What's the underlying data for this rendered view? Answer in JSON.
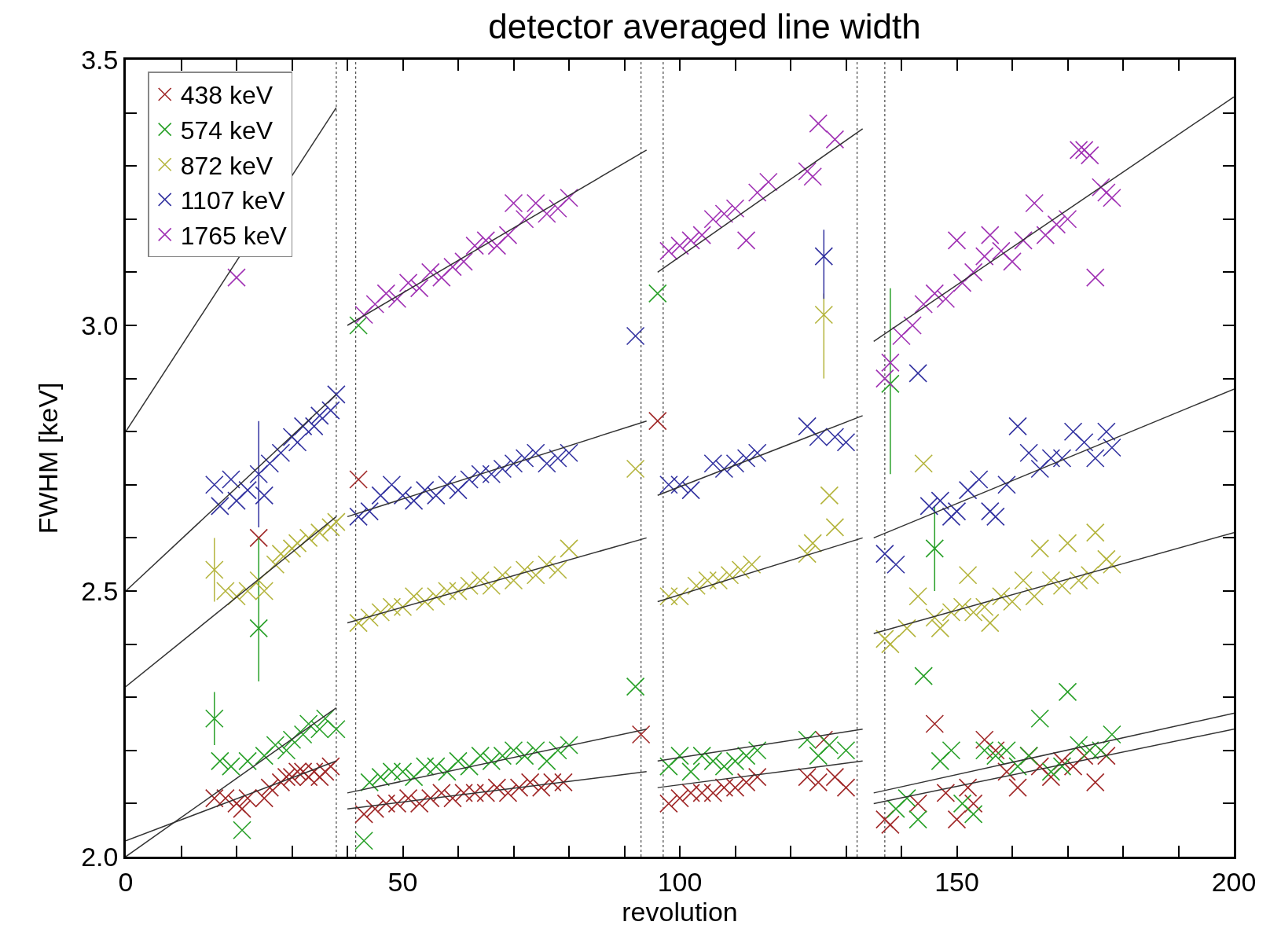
{
  "chart_data": {
    "type": "scatter",
    "title": "detector averaged line width",
    "xlabel": "revolution",
    "ylabel": "FWHM [keV]",
    "xlim": [
      0,
      200
    ],
    "ylim": [
      2.0,
      3.5
    ],
    "xticks": [
      0,
      {
        "value": 10,
        "label": null
      },
      {
        "value": 20,
        "label": null
      },
      {
        "value": 30,
        "label": null
      },
      {
        "value": 40,
        "label": null
      },
      50,
      {
        "value": 60,
        "label": null
      },
      {
        "value": 70,
        "label": null
      },
      {
        "value": 80,
        "label": null
      },
      {
        "value": 90,
        "label": null
      },
      100,
      {
        "value": 110,
        "label": null
      },
      {
        "value": 120,
        "label": null
      },
      {
        "value": 130,
        "label": null
      },
      {
        "value": 140,
        "label": null
      },
      150,
      {
        "value": 160,
        "label": null
      },
      {
        "value": 170,
        "label": null
      },
      {
        "value": 180,
        "label": null
      },
      {
        "value": 190,
        "label": null
      },
      200
    ],
    "yticks": [
      {
        "value": 2.0,
        "label": "2.0"
      },
      {
        "value": 2.1,
        "label": null
      },
      {
        "value": 2.2,
        "label": null
      },
      {
        "value": 2.3,
        "label": null
      },
      {
        "value": 2.4,
        "label": null
      },
      {
        "value": 2.5,
        "label": "2.5"
      },
      {
        "value": 2.6,
        "label": null
      },
      {
        "value": 2.7,
        "label": null
      },
      {
        "value": 2.8,
        "label": null
      },
      {
        "value": 2.9,
        "label": null
      },
      {
        "value": 3.0,
        "label": "3.0"
      },
      {
        "value": 3.1,
        "label": null
      },
      {
        "value": 3.2,
        "label": null
      },
      {
        "value": 3.3,
        "label": null
      },
      {
        "value": 3.4,
        "label": null
      },
      {
        "value": 3.5,
        "label": "3.5"
      }
    ],
    "grid": false,
    "legend": "top left",
    "ref_lines": [
      {
        "axis": "x",
        "value": 38,
        "color": "#555555",
        "line_style": "dotted"
      },
      {
        "axis": "x",
        "value": 41.5,
        "color": "#555555",
        "line_style": "dotted"
      },
      {
        "axis": "x",
        "value": 93,
        "color": "#555555",
        "line_style": "dotted"
      },
      {
        "axis": "x",
        "value": 97,
        "color": "#555555",
        "line_style": "dotted"
      },
      {
        "axis": "x",
        "value": 132,
        "color": "#555555",
        "line_style": "dotted"
      },
      {
        "axis": "x",
        "value": 137,
        "color": "#555555",
        "line_style": "dotted"
      }
    ],
    "series": [
      {
        "name": "438 keV",
        "marker": "cross",
        "color": "#a02828",
        "x": [
          16,
          18,
          20,
          21,
          22,
          24,
          25,
          26,
          28,
          29,
          30,
          31,
          32,
          33,
          34,
          35,
          36,
          37,
          42,
          43,
          45,
          47,
          49,
          51,
          53,
          55,
          57,
          59,
          61,
          63,
          65,
          67,
          69,
          71,
          73,
          75,
          77,
          79,
          93,
          96,
          98,
          100,
          102,
          104,
          106,
          108,
          110,
          112,
          114,
          123,
          125,
          126,
          128,
          130,
          137,
          138,
          143,
          146,
          148,
          150,
          152,
          153,
          155,
          157,
          159,
          161,
          163,
          165,
          167,
          169,
          171,
          173,
          175,
          177
        ],
        "values": [
          2.11,
          2.11,
          2.1,
          2.09,
          2.11,
          2.6,
          2.11,
          2.13,
          2.14,
          2.15,
          2.15,
          2.16,
          2.16,
          2.15,
          2.16,
          2.15,
          2.16,
          2.17,
          2.71,
          2.08,
          2.09,
          2.1,
          2.1,
          2.11,
          2.1,
          2.11,
          2.12,
          2.11,
          2.12,
          2.12,
          2.12,
          2.13,
          2.12,
          2.13,
          2.14,
          2.13,
          2.14,
          2.14,
          2.23,
          2.82,
          2.1,
          2.11,
          2.12,
          2.12,
          2.12,
          2.13,
          2.13,
          2.14,
          2.15,
          2.15,
          2.14,
          2.22,
          2.15,
          2.13,
          2.07,
          2.06,
          2.1,
          2.25,
          2.12,
          2.07,
          2.13,
          2.1,
          2.22,
          2.2,
          2.16,
          2.13,
          2.19,
          2.17,
          2.15,
          2.18,
          2.17,
          2.19,
          2.14,
          2.19
        ]
      },
      {
        "name": "574 keV",
        "marker": "cross",
        "color": "#28a028",
        "x": [
          16,
          24,
          138,
          146,
          17,
          19,
          21,
          22,
          25,
          27,
          29,
          30,
          32,
          33,
          35,
          36,
          38,
          42,
          43,
          44,
          46,
          48,
          50,
          52,
          54,
          56,
          58,
          60,
          62,
          64,
          66,
          68,
          70,
          72,
          74,
          76,
          78,
          80,
          92,
          96,
          98,
          100,
          102,
          104,
          106,
          108,
          110,
          112,
          114,
          123,
          125,
          127,
          130,
          139,
          141,
          143,
          144,
          147,
          149,
          151,
          153,
          155,
          157,
          159,
          161,
          163,
          165,
          167,
          169,
          170,
          172,
          174,
          176,
          178
        ],
        "values": [
          2.26,
          2.43,
          2.89,
          2.58,
          2.18,
          2.17,
          2.05,
          2.18,
          2.19,
          2.21,
          2.2,
          2.22,
          2.23,
          2.25,
          2.24,
          2.26,
          2.24,
          3.0,
          2.03,
          2.14,
          2.15,
          2.16,
          2.16,
          2.15,
          2.17,
          2.17,
          2.16,
          2.18,
          2.17,
          2.19,
          2.18,
          2.19,
          2.2,
          2.19,
          2.2,
          2.18,
          2.2,
          2.21,
          2.32,
          3.06,
          2.17,
          2.19,
          2.16,
          2.19,
          2.18,
          2.17,
          2.18,
          2.19,
          2.2,
          2.22,
          2.19,
          2.21,
          2.2,
          2.09,
          2.11,
          2.07,
          2.34,
          2.18,
          2.2,
          2.1,
          2.08,
          2.2,
          2.19,
          2.2,
          2.17,
          2.19,
          2.26,
          2.16,
          2.17,
          2.31,
          2.21,
          2.2,
          2.2,
          2.23
        ],
        "errors": [
          0.05,
          [
            2.33,
            2.6
          ],
          [
            2.72,
            3.07
          ],
          [
            2.5,
            2.66
          ],
          null,
          null,
          null,
          null,
          null,
          null,
          null,
          null,
          null,
          null,
          null,
          null,
          null,
          null,
          null,
          null,
          null,
          null,
          null,
          null,
          null,
          null,
          null,
          null,
          null,
          null,
          null,
          null,
          null,
          null,
          null,
          null,
          null,
          null,
          null,
          null,
          null,
          null,
          null,
          null,
          null,
          null,
          null,
          null,
          null,
          null,
          null,
          null,
          null,
          null,
          null,
          null,
          null,
          null,
          null,
          null,
          null,
          null,
          null,
          null,
          null,
          null,
          null,
          null,
          null,
          null,
          null,
          null,
          null,
          null
        ]
      },
      {
        "name": "872 keV",
        "marker": "cross",
        "color": "#b4b43c",
        "x": [
          16,
          126,
          18,
          20,
          22,
          24,
          25,
          27,
          28,
          30,
          31,
          33,
          35,
          37,
          38,
          42,
          44,
          46,
          48,
          50,
          52,
          54,
          56,
          58,
          60,
          62,
          64,
          66,
          68,
          70,
          72,
          74,
          76,
          78,
          80,
          92,
          98,
          100,
          103,
          105,
          107,
          109,
          111,
          113,
          123,
          124,
          127,
          128,
          137,
          138,
          141,
          143,
          144,
          146,
          147,
          149,
          151,
          152,
          153,
          155,
          156,
          158,
          160,
          162,
          164,
          165,
          167,
          169,
          170,
          172,
          174,
          175,
          177,
          178
        ],
        "values": [
          2.54,
          3.02,
          2.5,
          2.49,
          2.5,
          2.52,
          2.5,
          2.55,
          2.57,
          2.58,
          2.59,
          2.6,
          2.61,
          2.62,
          2.63,
          2.44,
          2.45,
          2.46,
          2.47,
          2.47,
          2.49,
          2.48,
          2.49,
          2.5,
          2.5,
          2.51,
          2.52,
          2.51,
          2.53,
          2.52,
          2.54,
          2.53,
          2.55,
          2.54,
          2.58,
          2.73,
          2.49,
          2.49,
          2.51,
          2.52,
          2.52,
          2.53,
          2.54,
          2.55,
          2.57,
          2.59,
          2.68,
          2.62,
          2.41,
          2.4,
          2.43,
          2.49,
          2.74,
          2.45,
          2.43,
          2.46,
          2.47,
          2.53,
          2.46,
          2.47,
          2.44,
          2.49,
          2.48,
          2.52,
          2.49,
          2.58,
          2.52,
          2.51,
          2.59,
          2.52,
          2.53,
          2.61,
          2.56,
          2.55
        ],
        "errors": [
          [
            2.48,
            2.6
          ],
          [
            2.9,
            3.06
          ],
          null,
          null,
          null,
          null,
          null,
          null,
          null,
          null,
          null,
          null,
          null,
          null,
          null,
          null,
          null,
          null,
          null,
          null,
          null,
          null,
          null,
          null,
          null,
          null,
          null,
          null,
          null,
          null,
          null,
          null,
          null,
          null,
          null,
          null,
          null,
          null,
          null,
          null,
          null,
          null,
          null,
          null,
          null,
          null,
          null,
          null,
          null,
          null,
          null,
          null,
          null,
          null,
          null,
          null,
          null,
          null,
          null,
          null,
          null,
          null,
          null,
          null,
          null,
          null,
          null,
          null,
          null,
          null,
          null,
          null,
          null,
          null
        ]
      },
      {
        "name": "1107 keV",
        "marker": "cross",
        "color": "#3232a0",
        "x": [
          24,
          126,
          16,
          17,
          19,
          20,
          22,
          25,
          26,
          28,
          30,
          31,
          32,
          34,
          35,
          37,
          38,
          42,
          44,
          46,
          48,
          50,
          52,
          54,
          56,
          58,
          60,
          62,
          64,
          66,
          68,
          70,
          72,
          74,
          76,
          78,
          80,
          92,
          98,
          100,
          102,
          106,
          108,
          110,
          112,
          114,
          123,
          125,
          128,
          130,
          137,
          139,
          143,
          145,
          147,
          149,
          150,
          152,
          154,
          156,
          157,
          159,
          161,
          163,
          165,
          167,
          169,
          171,
          173,
          175,
          177,
          178
        ],
        "values": [
          2.72,
          3.13,
          2.7,
          2.66,
          2.71,
          2.67,
          2.69,
          2.68,
          2.74,
          2.76,
          2.79,
          2.78,
          2.81,
          2.81,
          2.83,
          2.84,
          2.87,
          2.64,
          2.65,
          2.68,
          2.7,
          2.68,
          2.67,
          2.69,
          2.68,
          2.7,
          2.69,
          2.71,
          2.72,
          2.72,
          2.73,
          2.74,
          2.75,
          2.76,
          2.74,
          2.75,
          2.76,
          2.98,
          2.7,
          2.7,
          2.69,
          2.74,
          2.73,
          2.74,
          2.75,
          2.76,
          2.81,
          2.79,
          2.79,
          2.78,
          2.57,
          2.55,
          2.91,
          2.66,
          2.67,
          2.64,
          2.65,
          2.69,
          2.71,
          2.65,
          2.64,
          2.7,
          2.81,
          2.76,
          2.73,
          2.75,
          2.75,
          2.8,
          2.78,
          2.75,
          2.8,
          2.77
        ],
        "errors": [
          [
            2.62,
            2.82
          ],
          [
            3.05,
            3.18
          ],
          null,
          null,
          null,
          null,
          null,
          null,
          null,
          null,
          null,
          null,
          null,
          null,
          null,
          null,
          null,
          null,
          null,
          null,
          null,
          null,
          null,
          null,
          null,
          null,
          null,
          null,
          null,
          null,
          null,
          null,
          null,
          null,
          null,
          null,
          null,
          null,
          null,
          null,
          null,
          null,
          null,
          null,
          null,
          null,
          null,
          null,
          null,
          null,
          null,
          null,
          null,
          null,
          null,
          null,
          null,
          null,
          null,
          null,
          null,
          null,
          null,
          null,
          null,
          null,
          null,
          null,
          null,
          null,
          null,
          null
        ]
      },
      {
        "name": "1765 keV",
        "marker": "cross",
        "color": "#a032b4",
        "x": [
          20,
          43,
          45,
          47,
          49,
          51,
          53,
          55,
          57,
          59,
          61,
          63,
          65,
          67,
          69,
          70,
          72,
          74,
          76,
          78,
          80,
          98,
          100,
          102,
          104,
          106,
          108,
          110,
          112,
          114,
          116,
          123,
          124,
          125,
          128,
          137,
          138,
          140,
          142,
          144,
          146,
          148,
          150,
          151,
          153,
          155,
          156,
          158,
          160,
          162,
          164,
          166,
          168,
          170,
          172,
          173,
          174,
          175,
          176,
          177,
          178
        ],
        "values": [
          3.09,
          3.02,
          3.04,
          3.06,
          3.05,
          3.08,
          3.07,
          3.1,
          3.09,
          3.11,
          3.12,
          3.15,
          3.16,
          3.15,
          3.17,
          3.23,
          3.2,
          3.23,
          3.21,
          3.22,
          3.24,
          3.14,
          3.15,
          3.16,
          3.17,
          3.2,
          3.21,
          3.22,
          3.16,
          3.25,
          3.27,
          3.29,
          3.28,
          3.38,
          3.35,
          2.9,
          2.93,
          2.98,
          3.0,
          3.04,
          3.06,
          3.05,
          3.16,
          3.08,
          3.1,
          3.13,
          3.17,
          3.14,
          3.12,
          3.16,
          3.23,
          3.17,
          3.19,
          3.2,
          3.33,
          3.33,
          3.32,
          3.09,
          3.26,
          3.25,
          3.24
        ]
      },
      {
        "type": "line",
        "color": "#333333",
        "x": [
          0,
          38
        ],
        "values": [
          2.8,
          3.41
        ]
      },
      {
        "type": "line",
        "color": "#333333",
        "x": [
          40,
          94
        ],
        "values": [
          3.0,
          3.33
        ]
      },
      {
        "type": "line",
        "color": "#333333",
        "x": [
          96,
          133
        ],
        "values": [
          3.1,
          3.37
        ]
      },
      {
        "type": "line",
        "color": "#333333",
        "x": [
          135,
          200
        ],
        "values": [
          2.97,
          3.43
        ]
      },
      {
        "type": "line",
        "color": "#333333",
        "x": [
          0,
          38
        ],
        "values": [
          2.5,
          2.87
        ]
      },
      {
        "type": "line",
        "color": "#333333",
        "x": [
          40,
          94
        ],
        "values": [
          2.64,
          2.82
        ]
      },
      {
        "type": "line",
        "color": "#333333",
        "x": [
          96,
          133
        ],
        "values": [
          2.68,
          2.83
        ]
      },
      {
        "type": "line",
        "color": "#333333",
        "x": [
          135,
          200
        ],
        "values": [
          2.6,
          2.88
        ]
      },
      {
        "type": "line",
        "color": "#333333",
        "x": [
          0,
          38
        ],
        "values": [
          2.32,
          2.64
        ]
      },
      {
        "type": "line",
        "color": "#333333",
        "x": [
          40,
          94
        ],
        "values": [
          2.44,
          2.6
        ]
      },
      {
        "type": "line",
        "color": "#333333",
        "x": [
          96,
          133
        ],
        "values": [
          2.48,
          2.6
        ]
      },
      {
        "type": "line",
        "color": "#333333",
        "x": [
          135,
          200
        ],
        "values": [
          2.42,
          2.61
        ]
      },
      {
        "type": "line",
        "color": "#333333",
        "x": [
          0,
          38
        ],
        "values": [
          2.0,
          2.28
        ]
      },
      {
        "type": "line",
        "color": "#333333",
        "x": [
          40,
          94
        ],
        "values": [
          2.12,
          2.24
        ]
      },
      {
        "type": "line",
        "color": "#333333",
        "x": [
          96,
          133
        ],
        "values": [
          2.18,
          2.24
        ]
      },
      {
        "type": "line",
        "color": "#333333",
        "x": [
          135,
          200
        ],
        "values": [
          2.12,
          2.27
        ]
      },
      {
        "type": "line",
        "color": "#333333",
        "x": [
          0,
          38
        ],
        "values": [
          2.03,
          2.18
        ]
      },
      {
        "type": "line",
        "color": "#333333",
        "x": [
          40,
          94
        ],
        "values": [
          2.09,
          2.16
        ]
      },
      {
        "type": "line",
        "color": "#333333",
        "x": [
          96,
          133
        ],
        "values": [
          2.13,
          2.18
        ]
      },
      {
        "type": "line",
        "color": "#333333",
        "x": [
          135,
          200
        ],
        "values": [
          2.1,
          2.24
        ]
      }
    ]
  }
}
